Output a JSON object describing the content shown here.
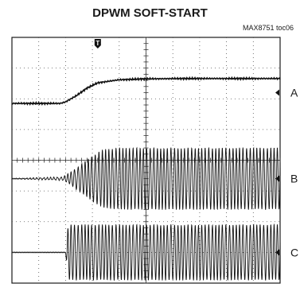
{
  "chart_data": {
    "type": "line",
    "title": "DPWM SOFT-START",
    "figure_id": "MAX8751 toc06",
    "trigger_marker": "T",
    "grid": true,
    "series": [
      {
        "name": "A",
        "kind": "soft-start ramp",
        "x": [
          0,
          1.8,
          2.0,
          2.4,
          2.8,
          3.2,
          4.0,
          5.0,
          6.5,
          10
        ],
        "y": [
          -0.35,
          -0.35,
          -0.3,
          -0.1,
          0.15,
          0.32,
          0.42,
          0.45,
          0.46,
          0.46
        ]
      },
      {
        "name": "B",
        "kind": "switching envelope",
        "x": [
          0,
          1.9,
          2.2,
          2.6,
          3.0,
          3.4,
          4.0,
          10
        ],
        "y": [
          0,
          0.05,
          0.2,
          0.45,
          0.7,
          0.9,
          0.95,
          0.95
        ]
      },
      {
        "name": "C",
        "kind": "switching envelope",
        "x": [
          0,
          2.0,
          2.1,
          10
        ],
        "y": [
          0,
          0,
          0.9,
          0.9
        ]
      }
    ]
  }
}
